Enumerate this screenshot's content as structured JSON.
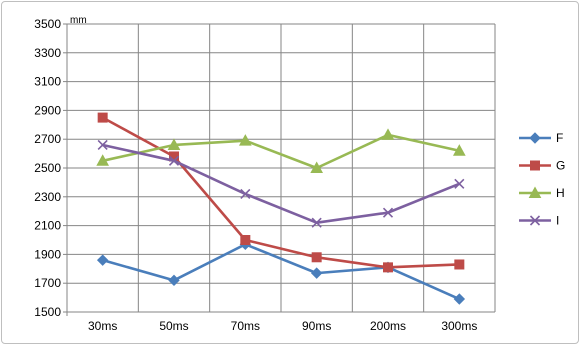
{
  "chart_data": {
    "type": "line",
    "categories": [
      "30ms",
      "50ms",
      "70ms",
      "90ms",
      "200ms",
      "300ms"
    ],
    "y_unit": "mm",
    "ylim": [
      1500,
      3500
    ],
    "yticks": [
      1500,
      1700,
      1900,
      2100,
      2300,
      2500,
      2700,
      2900,
      3100,
      3300,
      3500
    ],
    "grid": true,
    "legend": "right",
    "series": [
      {
        "name": "F",
        "color": "#4a7ebb",
        "marker": "diamond",
        "values": [
          1860,
          1720,
          1970,
          1770,
          1810,
          1590
        ]
      },
      {
        "name": "G",
        "color": "#be4b48",
        "marker": "square",
        "values": [
          2850,
          2580,
          2000,
          1880,
          1810,
          1830
        ]
      },
      {
        "name": "H",
        "color": "#98b954",
        "marker": "triangle",
        "values": [
          2550,
          2660,
          2690,
          2500,
          2730,
          2620
        ]
      },
      {
        "name": "I",
        "color": "#7d60a0",
        "marker": "x",
        "values": [
          2660,
          2550,
          2320,
          2120,
          2190,
          2390
        ]
      }
    ]
  }
}
